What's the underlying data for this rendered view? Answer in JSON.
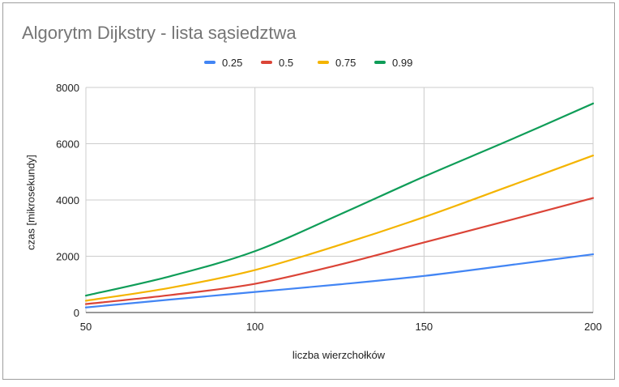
{
  "chart_data": {
    "type": "line",
    "title": "Algorytm Dijkstry - lista sąsiedztwa",
    "xlabel": "liczba wierzchołków",
    "ylabel": "czas [mikrosekundy]",
    "xlim": [
      50,
      200
    ],
    "ylim": [
      0,
      8000
    ],
    "x_ticks": [
      "50",
      "100",
      "150",
      "200"
    ],
    "y_ticks": [
      "0",
      "2000",
      "4000",
      "6000",
      "8000"
    ],
    "grid": true,
    "legend_position": "top",
    "x": [
      50,
      75,
      100,
      125,
      150,
      175,
      200
    ],
    "series": [
      {
        "name": "0.25",
        "color": "#4285f4",
        "values": [
          180,
          460,
          730,
          1000,
          1300,
          1680,
          2070
        ]
      },
      {
        "name": "0.5",
        "color": "#db4437",
        "values": [
          300,
          620,
          1020,
          1700,
          2490,
          3270,
          4070
        ]
      },
      {
        "name": "0.75",
        "color": "#f4b400",
        "values": [
          420,
          880,
          1510,
          2400,
          3390,
          4480,
          5580
        ]
      },
      {
        "name": "0.99",
        "color": "#0f9d58",
        "values": [
          600,
          1290,
          2180,
          3480,
          4830,
          6110,
          7430
        ]
      }
    ]
  }
}
